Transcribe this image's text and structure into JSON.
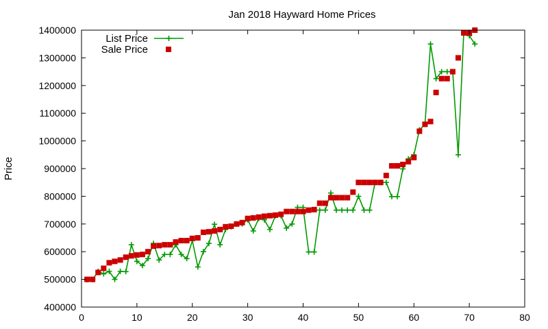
{
  "chart_data": {
    "type": "line",
    "title": "Jan 2018 Hayward Home Prices",
    "xlabel": "",
    "ylabel": "Price",
    "xlim": [
      0,
      80
    ],
    "ylim": [
      400000,
      1400000
    ],
    "xticks": [
      0,
      10,
      20,
      30,
      40,
      50,
      60,
      70,
      80
    ],
    "yticks": [
      400000,
      500000,
      600000,
      700000,
      800000,
      900000,
      1000000,
      1100000,
      1200000,
      1300000,
      1400000
    ],
    "grid": false,
    "legend_position": "top-left",
    "series": [
      {
        "name": "List Price",
        "style": "line-plus",
        "color": "#009900",
        "x": [
          1,
          2,
          3,
          4,
          5,
          6,
          7,
          8,
          9,
          10,
          11,
          12,
          13,
          14,
          15,
          16,
          17,
          18,
          19,
          20,
          21,
          22,
          23,
          24,
          25,
          26,
          27,
          28,
          29,
          30,
          31,
          32,
          33,
          34,
          35,
          36,
          37,
          38,
          39,
          40,
          41,
          42,
          43,
          44,
          45,
          46,
          47,
          48,
          49,
          50,
          51,
          52,
          53,
          54,
          55,
          56,
          57,
          58,
          59,
          60,
          61,
          62,
          63,
          64,
          65,
          66,
          67,
          68,
          69,
          70,
          71
        ],
        "y": [
          499000,
          499000,
          529000,
          520000,
          529000,
          500000,
          529000,
          528000,
          625000,
          565000,
          550000,
          575000,
          630000,
          570000,
          590000,
          590000,
          625000,
          590000,
          575000,
          640000,
          545000,
          600000,
          630000,
          699000,
          625000,
          680000,
          690000,
          700000,
          700000,
          715000,
          675000,
          720000,
          715000,
          680000,
          730000,
          730000,
          685000,
          700000,
          760000,
          760000,
          599000,
          599000,
          750000,
          750000,
          812000,
          750000,
          750000,
          750000,
          750000,
          800000,
          750000,
          750000,
          850000,
          850000,
          850000,
          799000,
          799000,
          899000,
          935000,
          950000,
          1040000,
          1060000,
          1350000,
          1225000,
          1250000,
          1250000,
          1250000,
          950000,
          1390000,
          1380000,
          1350000
        ]
      },
      {
        "name": "Sale Price",
        "style": "square-points",
        "color": "#cc0000",
        "x": [
          1,
          2,
          3,
          4,
          5,
          6,
          7,
          8,
          9,
          10,
          11,
          12,
          13,
          14,
          15,
          16,
          17,
          18,
          19,
          20,
          21,
          22,
          23,
          24,
          25,
          26,
          27,
          28,
          29,
          30,
          31,
          32,
          33,
          34,
          35,
          36,
          37,
          38,
          39,
          40,
          41,
          42,
          43,
          44,
          45,
          46,
          47,
          48,
          49,
          50,
          51,
          52,
          53,
          54,
          55,
          56,
          57,
          58,
          59,
          60,
          61,
          62,
          63,
          64,
          65,
          66,
          67,
          68,
          69,
          70,
          71
        ],
        "y": [
          500000,
          500000,
          525000,
          540000,
          560000,
          565000,
          570000,
          580000,
          585000,
          588000,
          590000,
          600000,
          620000,
          622000,
          625000,
          625000,
          635000,
          640000,
          640000,
          648000,
          650000,
          670000,
          672000,
          675000,
          680000,
          690000,
          692000,
          700000,
          705000,
          720000,
          722000,
          725000,
          728000,
          730000,
          732000,
          735000,
          745000,
          745000,
          745000,
          745000,
          750000,
          752000,
          775000,
          775000,
          795000,
          795000,
          795000,
          795000,
          815000,
          850000,
          850000,
          850000,
          850000,
          850000,
          875000,
          910000,
          910000,
          915000,
          925000,
          940000,
          1035000,
          1060000,
          1070000,
          1175000,
          1225000,
          1225000,
          1250000,
          1300000,
          1390000,
          1390000,
          1400000
        ]
      }
    ]
  }
}
